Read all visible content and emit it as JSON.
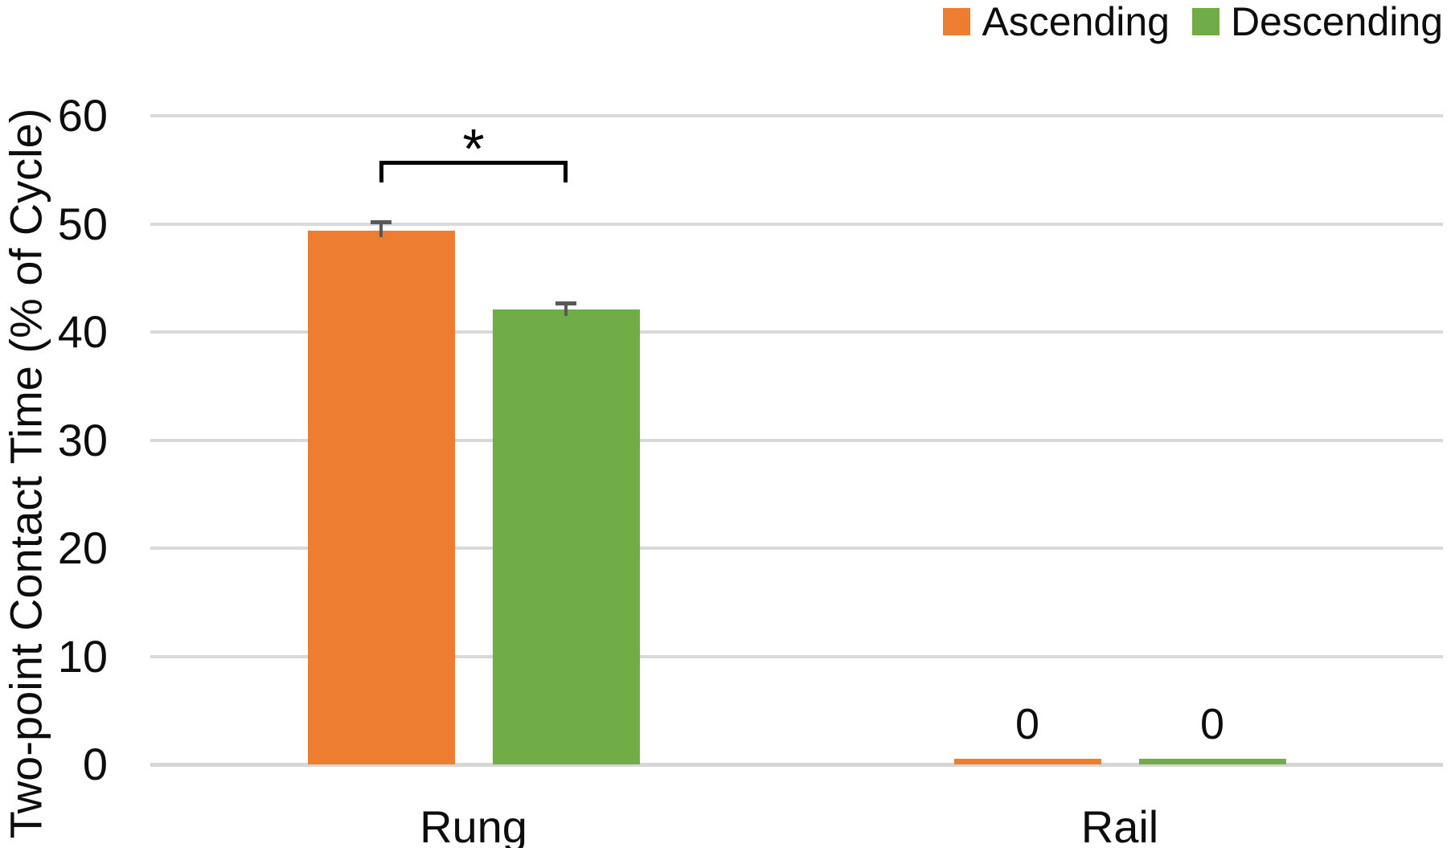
{
  "chart_data": {
    "type": "bar",
    "title": "",
    "xlabel": "",
    "ylabel": "Two-point Contact Time (% of Cycle)",
    "categories": [
      "Rung",
      "Rail"
    ],
    "series": [
      {
        "name": "Ascending",
        "color": "#ED7D31",
        "values": [
          49.4,
          0.5
        ],
        "errors": [
          0.8,
          null
        ],
        "data_labels": [
          null,
          "0"
        ]
      },
      {
        "name": "Descending",
        "color": "#70AD47",
        "values": [
          42.1,
          0.5
        ],
        "errors": [
          0.6,
          null
        ],
        "data_labels": [
          null,
          "0"
        ]
      }
    ],
    "ylim": [
      0,
      60
    ],
    "yticks": [
      0,
      10,
      20,
      30,
      40,
      50,
      60
    ],
    "grid": true,
    "legend_position": "top-right",
    "annotations": [
      {
        "type": "significance-bracket",
        "label": "*",
        "category": "Rung",
        "between": [
          "Ascending",
          "Descending"
        ]
      }
    ]
  },
  "colors": {
    "gridline": "#D9D9D9",
    "error_bar": "#595959",
    "text": "#0D0D0D",
    "background": "#FFFFFF"
  }
}
